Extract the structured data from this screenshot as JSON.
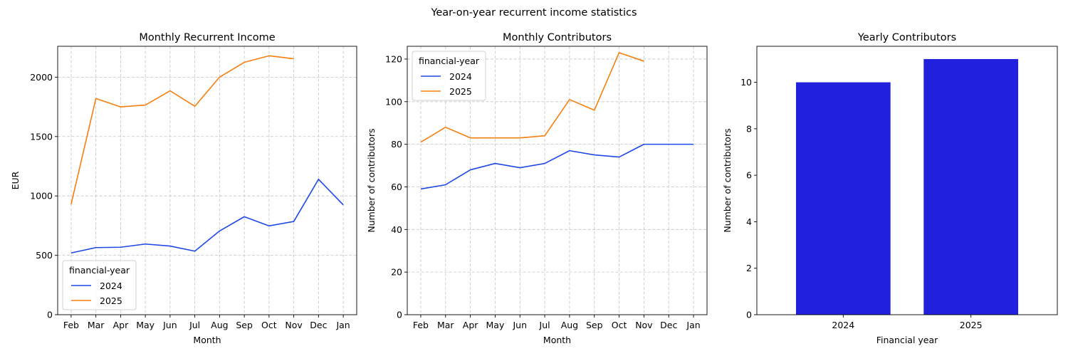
{
  "figure": {
    "suptitle": "Year-on-year recurrent income statistics"
  },
  "chart_data": [
    {
      "type": "line",
      "title": "Monthly Recurrent Income",
      "xlabel": "Month",
      "ylabel": "EUR",
      "categories": [
        "Feb",
        "Mar",
        "Apr",
        "May",
        "Jun",
        "Jul",
        "Aug",
        "Sep",
        "Oct",
        "Nov",
        "Dec",
        "Jan"
      ],
      "ylim": [
        0,
        2260
      ],
      "yticks": [
        0,
        500,
        1000,
        1500,
        2000
      ],
      "grid": true,
      "legend": {
        "title": "financial-year",
        "placement": "lower-left"
      },
      "series": [
        {
          "name": "2024",
          "color": "#1f48e6",
          "values": [
            520,
            565,
            568,
            595,
            578,
            535,
            705,
            825,
            748,
            785,
            1140,
            925
          ]
        },
        {
          "name": "2025",
          "color": "#f77f0e",
          "values": [
            930,
            1820,
            1750,
            1765,
            1885,
            1755,
            2000,
            2125,
            2180,
            2155,
            null,
            null
          ]
        }
      ]
    },
    {
      "type": "line",
      "title": "Monthly Contributors",
      "xlabel": "Month",
      "ylabel": "Number of contributors",
      "categories": [
        "Feb",
        "Mar",
        "Apr",
        "May",
        "Jun",
        "Jul",
        "Aug",
        "Sep",
        "Oct",
        "Nov",
        "Dec",
        "Jan"
      ],
      "ylim": [
        0,
        126
      ],
      "yticks": [
        0,
        20,
        40,
        60,
        80,
        100,
        120
      ],
      "grid": true,
      "legend": {
        "title": "financial-year",
        "placement": "upper-left"
      },
      "series": [
        {
          "name": "2024",
          "color": "#1f48e6",
          "values": [
            59,
            61,
            68,
            71,
            69,
            71,
            77,
            75,
            74,
            80,
            80,
            80
          ]
        },
        {
          "name": "2025",
          "color": "#f77f0e",
          "values": [
            81,
            88,
            83,
            83,
            83,
            84,
            101,
            96,
            123,
            119,
            null,
            null
          ]
        }
      ]
    },
    {
      "type": "bar",
      "title": "Yearly Contributors",
      "xlabel": "Financial year",
      "ylabel": "Number of contributors",
      "categories": [
        "2024",
        "2025"
      ],
      "values": [
        10,
        11
      ],
      "color": "#2020dd",
      "ylim": [
        0,
        11.55
      ],
      "yticks": [
        0,
        2,
        4,
        6,
        8,
        10
      ],
      "grid": false
    }
  ]
}
